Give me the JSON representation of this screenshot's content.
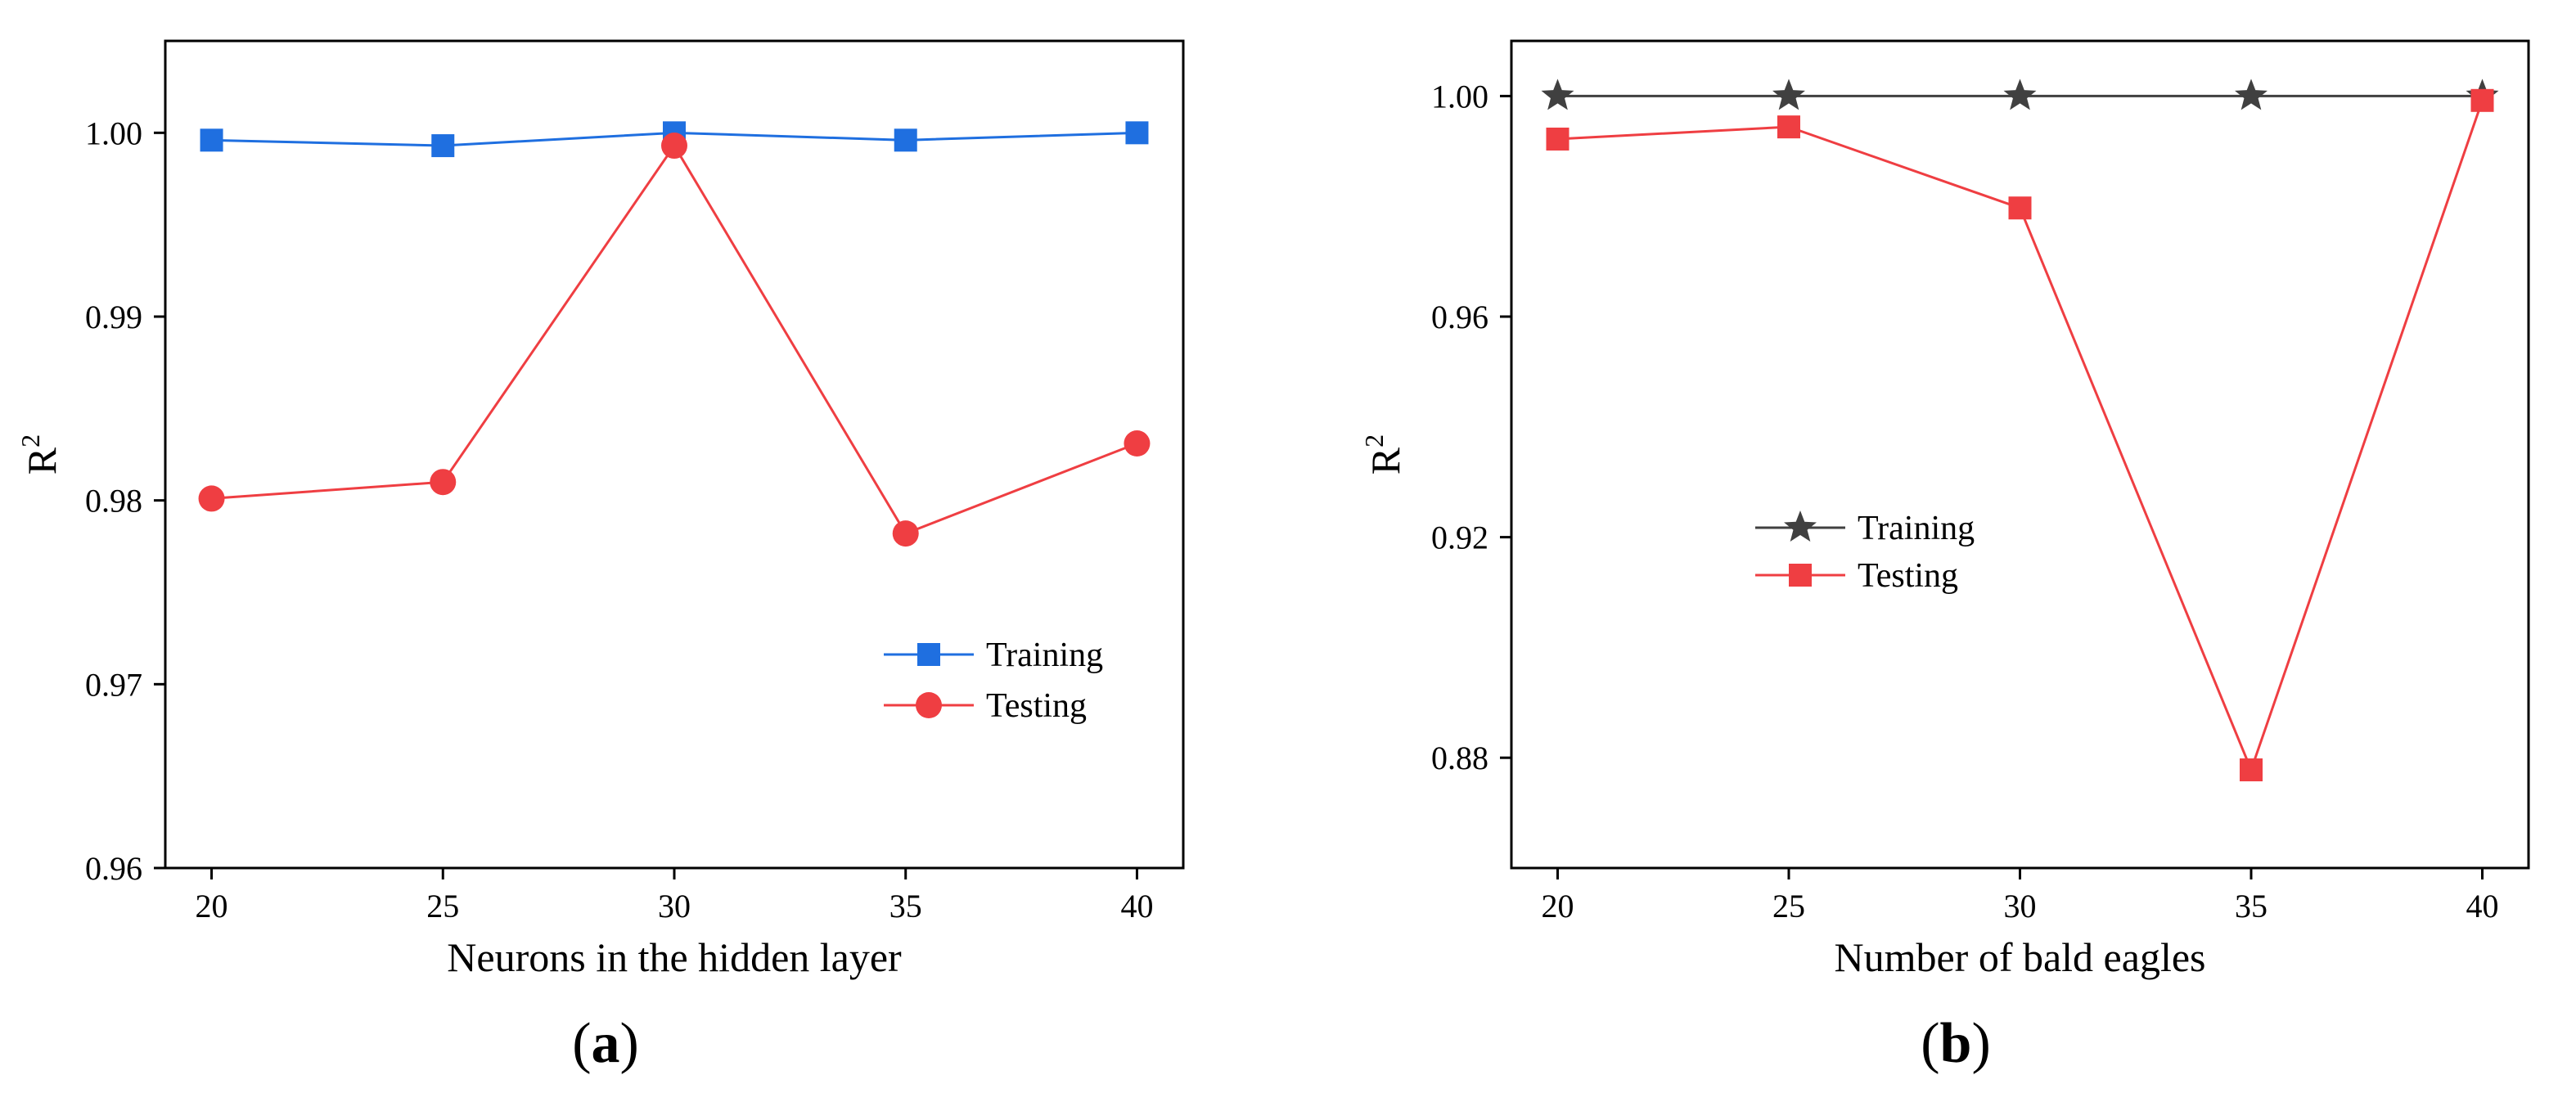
{
  "chart_data": [
    {
      "type": "line",
      "panel_label": "a",
      "xlabel": "Neurons in the hidden layer",
      "ylabel": "R",
      "ylabel_superscript": "2",
      "x": [
        20,
        25,
        30,
        35,
        40
      ],
      "x_tick_labels": [
        "20",
        "25",
        "30",
        "35",
        "40"
      ],
      "xlim": [
        19,
        41
      ],
      "ylim": [
        0.96,
        1.005
      ],
      "y_ticks": [
        0.96,
        0.97,
        0.98,
        0.99,
        1.0
      ],
      "y_tick_labels": [
        "0.96",
        "0.97",
        "0.98",
        "0.99",
        "1.00"
      ],
      "legend_position": "lower-right",
      "series": [
        {
          "name": "Training",
          "marker": "square",
          "color": "#1f6fe0",
          "values": [
            0.9996,
            0.9993,
            1.0,
            0.9996,
            1.0
          ]
        },
        {
          "name": "Testing",
          "marker": "circle",
          "color": "#ef3e42",
          "values": [
            0.9801,
            0.981,
            0.9993,
            0.9782,
            0.9831
          ]
        }
      ]
    },
    {
      "type": "line",
      "panel_label": "b",
      "xlabel": "Number of bald eagles",
      "ylabel": "R",
      "ylabel_superscript": "2",
      "x": [
        20,
        25,
        30,
        35,
        40
      ],
      "x_tick_labels": [
        "20",
        "25",
        "30",
        "35",
        "40"
      ],
      "xlim": [
        19,
        41
      ],
      "ylim": [
        0.86,
        1.01
      ],
      "y_ticks": [
        0.88,
        0.92,
        0.96,
        1.0
      ],
      "y_tick_labels": [
        "0.88",
        "0.92",
        "0.96",
        "1.00"
      ],
      "legend_position": "center-left",
      "series": [
        {
          "name": "Training",
          "marker": "star",
          "color": "#404040",
          "values": [
            1.0,
            1.0,
            1.0,
            1.0,
            1.0
          ]
        },
        {
          "name": "Testing",
          "marker": "square",
          "color": "#ef3e42",
          "values": [
            0.9922,
            0.9944,
            0.9797,
            0.8778,
            0.9992
          ]
        }
      ]
    }
  ]
}
